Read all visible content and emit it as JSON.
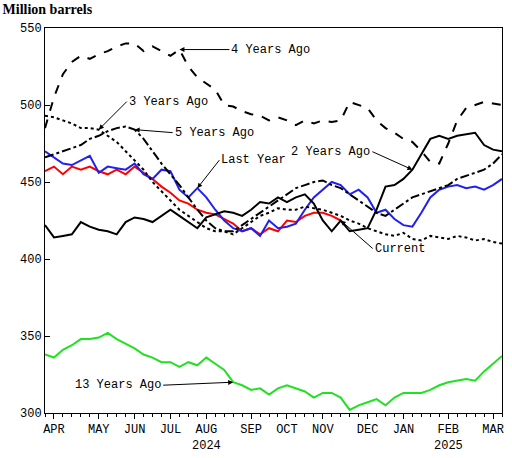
{
  "chart_data": {
    "type": "line",
    "title": "Million barrels",
    "grid": false,
    "ylim": [
      300,
      550
    ],
    "yticks": [
      300,
      350,
      400,
      450,
      500,
      550
    ],
    "categories": [
      null,
      "APR",
      null,
      null,
      null,
      null,
      "MAY",
      null,
      null,
      null,
      "JUN",
      null,
      null,
      null,
      "JUL",
      null,
      null,
      null,
      "AUG",
      null,
      null,
      null,
      null,
      "SEP",
      null,
      null,
      null,
      "OCT",
      null,
      null,
      null,
      "NOV",
      null,
      null,
      null,
      null,
      "DEC",
      null,
      null,
      null,
      "JAN",
      null,
      null,
      null,
      null,
      "FEB",
      null,
      null,
      null,
      null,
      "MAR",
      null
    ],
    "year_labels": [
      {
        "text": "2024",
        "at": "AUG"
      },
      {
        "text": "2025",
        "at": "FEB"
      }
    ],
    "series": [
      {
        "name": "Current",
        "color": "#ff0000",
        "line_style": "solid",
        "values": [
          457,
          460,
          455,
          460,
          458,
          460,
          457,
          455,
          458,
          455,
          460,
          456,
          452,
          447,
          443,
          438,
          436,
          432,
          430,
          429,
          426,
          423,
          418,
          420,
          416,
          420,
          418,
          425,
          424,
          428,
          430,
          430,
          428,
          425,
          null,
          null,
          null,
          null,
          null,
          null,
          null,
          null,
          null,
          null,
          null,
          null,
          null,
          null,
          null,
          null,
          null,
          null
        ]
      },
      {
        "name": "Last Year",
        "color": "#2020f0",
        "line_style": "solid",
        "values": [
          470,
          466,
          462,
          461,
          464,
          467,
          456,
          460,
          459,
          458,
          462,
          455,
          452,
          458,
          457,
          445,
          440,
          446,
          440,
          432,
          425,
          420,
          418,
          420,
          415,
          425,
          420,
          421,
          423,
          432,
          440,
          445,
          450,
          448,
          442,
          445,
          440,
          430,
          432,
          426,
          422,
          421,
          430,
          440,
          445,
          447,
          448,
          446,
          447,
          445,
          448,
          452
        ]
      },
      {
        "name": "2 Years Ago",
        "color": "#000000",
        "line_style": "solid",
        "values": [
          422,
          414,
          415,
          416,
          424,
          421,
          419,
          418,
          416,
          424,
          427,
          426,
          424,
          428,
          432,
          428,
          424,
          420,
          427,
          429,
          431,
          430,
          428,
          432,
          437,
          436,
          440,
          437,
          440,
          442,
          436,
          425,
          418,
          425,
          418,
          419,
          420,
          432,
          447,
          448,
          452,
          458,
          468,
          478,
          480,
          478,
          480,
          481,
          482,
          474,
          471,
          470
        ]
      },
      {
        "name": "3 Years Ago",
        "color": "#000000",
        "line_style": "dot",
        "values": [
          493,
          492,
          490,
          488,
          485,
          485,
          484,
          480,
          476,
          470,
          464,
          458,
          450,
          444,
          438,
          432,
          428,
          424,
          420,
          418,
          418,
          416,
          420,
          424,
          428,
          430,
          433,
          432,
          432,
          434,
          433,
          432,
          430,
          428,
          425,
          423,
          420,
          418,
          416,
          415,
          417,
          413,
          412,
          415,
          414,
          413,
          415,
          414,
          412,
          413,
          411,
          410
        ]
      },
      {
        "name": "4 Years Ago",
        "color": "#000000",
        "line_style": "dash",
        "values": [
          485,
          505,
          520,
          528,
          532,
          530,
          533,
          535,
          538,
          540,
          540,
          535,
          538,
          535,
          532,
          536,
          525,
          518,
          514,
          510,
          500,
          499,
          496,
          494,
          493,
          490,
          492,
          490,
          487,
          490,
          488,
          490,
          489,
          490,
          502,
          500,
          498,
          490,
          485,
          482,
          478,
          476,
          470,
          463,
          462,
          475,
          490,
          498,
          500,
          502,
          501,
          500
        ]
      },
      {
        "name": "5 Years Ago",
        "color": "#000000",
        "line_style": "dashdot",
        "values": [
          466,
          468,
          470,
          472,
          474,
          478,
          480,
          483,
          485,
          486,
          484,
          478,
          470,
          462,
          455,
          448,
          440,
          432,
          425,
          420,
          418,
          418,
          422,
          426,
          430,
          434,
          438,
          442,
          446,
          448,
          450,
          451,
          448,
          446,
          442,
          438,
          434,
          430,
          428,
          432,
          436,
          440,
          442,
          444,
          446,
          448,
          452,
          454,
          456,
          458,
          462,
          468
        ]
      },
      {
        "name": "13 Years Ago",
        "color": "#22e022",
        "line_style": "solid",
        "values": [
          338,
          336,
          341,
          344,
          348,
          348,
          349,
          352,
          348,
          345,
          342,
          338,
          336,
          333,
          333,
          330,
          333,
          331,
          336,
          332,
          328,
          320,
          318,
          315,
          316,
          312,
          316,
          318,
          316,
          314,
          310,
          313,
          313,
          310,
          302,
          305,
          307,
          309,
          305,
          310,
          313,
          313,
          313,
          315,
          318,
          320,
          321,
          322,
          321,
          327,
          332,
          337
        ]
      }
    ],
    "annotations": [
      {
        "text": "4 Years Ago",
        "x": 15,
        "y": 536
      },
      {
        "text": "3 Years Ago",
        "x": 6,
        "y": 484
      },
      {
        "text": "5 Years Ago",
        "x": 10,
        "y": 484
      },
      {
        "text": "Last Year",
        "x": 17,
        "y": 446
      },
      {
        "text": "2 Years Ago",
        "x": 41,
        "y": 458
      },
      {
        "text": "Current",
        "x": 33,
        "y": 425
      },
      {
        "text": "13 Years Ago",
        "x": 21,
        "y": 320
      }
    ]
  }
}
